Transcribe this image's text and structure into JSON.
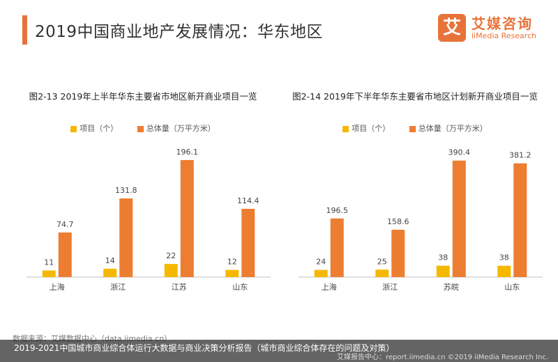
{
  "page": {
    "title": "2019中国商业地产发展情况：华东地区",
    "logo": {
      "cn": "艾媒咨询",
      "en": "iiMedia Research",
      "mark": "艾"
    },
    "source": "数据来源：艾媒数据中心（data.iimedia.cn）",
    "caption": "2019-2021中国城市商业综合体运行大数据与商业决策分析报告（城市商业综合体存在的问题及对策）",
    "footer_right": "艾媒报告中心：report.iimedia.cn ©2019 iiMedia Research Inc."
  },
  "colors": {
    "projects": "#f5b800",
    "area": "#ed7d31",
    "accent": "#e8733a"
  },
  "chart_data": [
    {
      "type": "bar",
      "title": "图2-13 2019年上半年华东主要省市地区新开商业项目一览",
      "categories": [
        "上海",
        "浙江",
        "江苏",
        "山东"
      ],
      "series": [
        {
          "name": "项目（个）",
          "values": [
            11,
            14,
            22,
            12
          ]
        },
        {
          "name": "总体量（万平方米）",
          "values": [
            74.7,
            131.8,
            196.1,
            114.4
          ]
        }
      ],
      "ylim": [
        0,
        210
      ],
      "legend_position": "top"
    },
    {
      "type": "bar",
      "title": "图2-14 2019年下半年华东主要省市地区计划新开商业项目一览",
      "categories": [
        "上海",
        "浙江",
        "苏皖",
        "山东"
      ],
      "series": [
        {
          "name": "项目（个）",
          "values": [
            24,
            25,
            38,
            38
          ]
        },
        {
          "name": "总体量（万平方米）",
          "values": [
            196.5,
            158.6,
            390.4,
            381.2
          ]
        }
      ],
      "ylim": [
        0,
        420
      ],
      "legend_position": "top"
    }
  ]
}
